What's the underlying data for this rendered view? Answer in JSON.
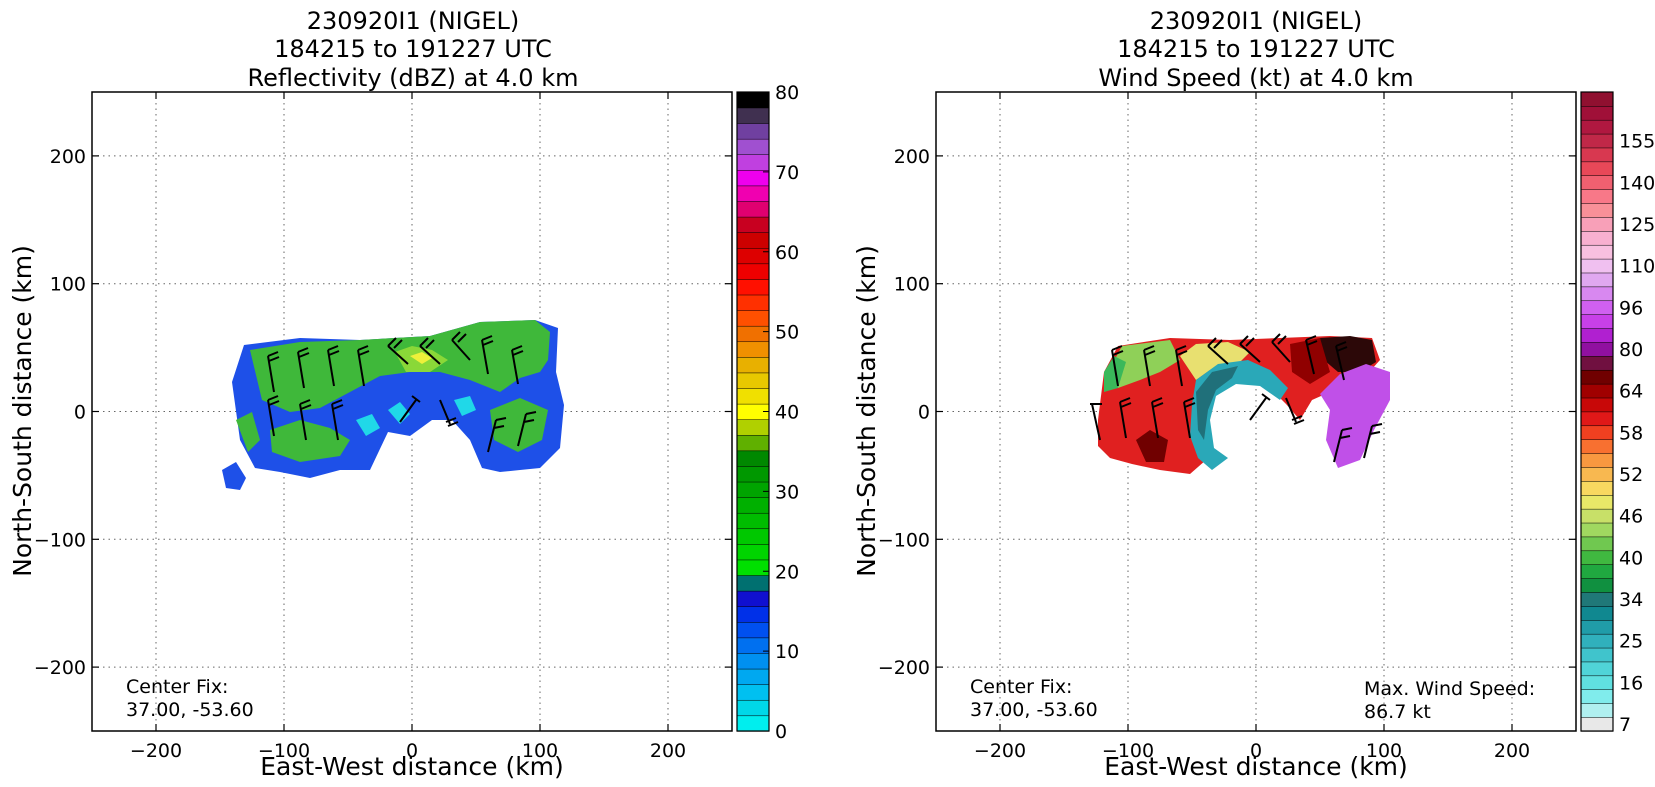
{
  "chart_data": [
    {
      "type": "heatmap",
      "title_lines": [
        "230920I1 (NIGEL)",
        "184215 to 191227 UTC",
        "Reflectivity (dBZ) at 4.0 km"
      ],
      "xlabel": "East-West distance (km)",
      "ylabel": "North-South distance (km)",
      "xlim": [
        -250,
        250
      ],
      "ylim": [
        -250,
        250
      ],
      "xticks": [
        -200,
        -100,
        0,
        100,
        200
      ],
      "yticks": [
        -200,
        -100,
        0,
        100,
        200
      ],
      "xtick_labels": [
        "−200",
        "−100",
        "0",
        "100",
        "200"
      ],
      "ytick_labels": [
        "−200",
        "−100",
        "0",
        "100",
        "200"
      ],
      "grid": true,
      "annotations": [
        "Center Fix:",
        "37.00, -53.60"
      ],
      "colorbar": {
        "min": 0,
        "max": 80,
        "ticks": [
          0,
          10,
          20,
          30,
          40,
          50,
          60,
          70,
          80
        ],
        "tick_labels": [
          "0",
          "10",
          "20",
          "30",
          "40",
          "50",
          "60",
          "70",
          "80"
        ],
        "colors": [
          "#00eeee",
          "#00d8e8",
          "#00c0f0",
          "#00a8f0",
          "#0090f0",
          "#0070f0",
          "#0050f0",
          "#0030e8",
          "#1010d0",
          "#007070",
          "#00e000",
          "#00d400",
          "#00c800",
          "#00bc00",
          "#00b000",
          "#00a400",
          "#009800",
          "#008800",
          "#60b000",
          "#b0d000",
          "#ffff00",
          "#f0e000",
          "#e8c800",
          "#e8b000",
          "#f09000",
          "#f07000",
          "#ff5000",
          "#ff3000",
          "#ff1000",
          "#ee0000",
          "#dd0000",
          "#cc0000",
          "#c80020",
          "#e00070",
          "#f000b0",
          "#ee00ee",
          "#c040e0",
          "#a050d0",
          "#7040a0",
          "#403050",
          "#000000"
        ]
      }
    },
    {
      "type": "heatmap",
      "title_lines": [
        "230920I1 (NIGEL)",
        "184215 to 191227 UTC",
        "Wind Speed (kt) at 4.0 km"
      ],
      "xlabel": "East-West distance (km)",
      "ylabel": "North-South distance (km)",
      "xlim": [
        -250,
        250
      ],
      "ylim": [
        -250,
        250
      ],
      "xticks": [
        -200,
        -100,
        0,
        100,
        200
      ],
      "yticks": [
        -200,
        -100,
        0,
        100,
        200
      ],
      "xtick_labels": [
        "−200",
        "−100",
        "0",
        "100",
        "200"
      ],
      "ytick_labels": [
        "−200",
        "−100",
        "0",
        "100",
        "200"
      ],
      "grid": true,
      "annotations": [
        "Center Fix:",
        "37.00, -53.60"
      ],
      "max_wind_label": "Max. Wind Speed:",
      "max_wind_value": "86.7 kt",
      "colorbar": {
        "tick_labels": [
          "7",
          "16",
          "25",
          "34",
          "40",
          "46",
          "52",
          "58",
          "64",
          "80",
          "96",
          "110",
          "125",
          "140",
          "155"
        ],
        "tick_slot_positions": [
          0.5,
          3.5,
          6.5,
          9.5,
          12.5,
          15.5,
          18.5,
          21.5,
          24.5,
          27.5,
          30.5,
          33.5,
          36.5,
          39.5,
          42.5
        ],
        "colors": [
          "#e8e8e8",
          "#b0f0f0",
          "#80ecec",
          "#60e0e0",
          "#50d4d8",
          "#40c4cc",
          "#30b0bc",
          "#209ca8",
          "#108890",
          "#207878",
          "#109040",
          "#20a840",
          "#40b840",
          "#70c850",
          "#a0d860",
          "#c8e068",
          "#e8e868",
          "#f8d860",
          "#f8b850",
          "#f89840",
          "#f87030",
          "#f04020",
          "#e01818",
          "#c80808",
          "#a00000",
          "#700000",
          "#701040",
          "#9010a0",
          "#b020d0",
          "#c840e8",
          "#d060f0",
          "#d888f0",
          "#e0a8f0",
          "#f0c0f0",
          "#f8c0e0",
          "#f8b0d0",
          "#f8a0b8",
          "#f89098",
          "#f87888",
          "#f06070",
          "#e84858",
          "#d83850",
          "#c02848",
          "#b01840",
          "#a01038",
          "#901030"
        ]
      }
    }
  ]
}
